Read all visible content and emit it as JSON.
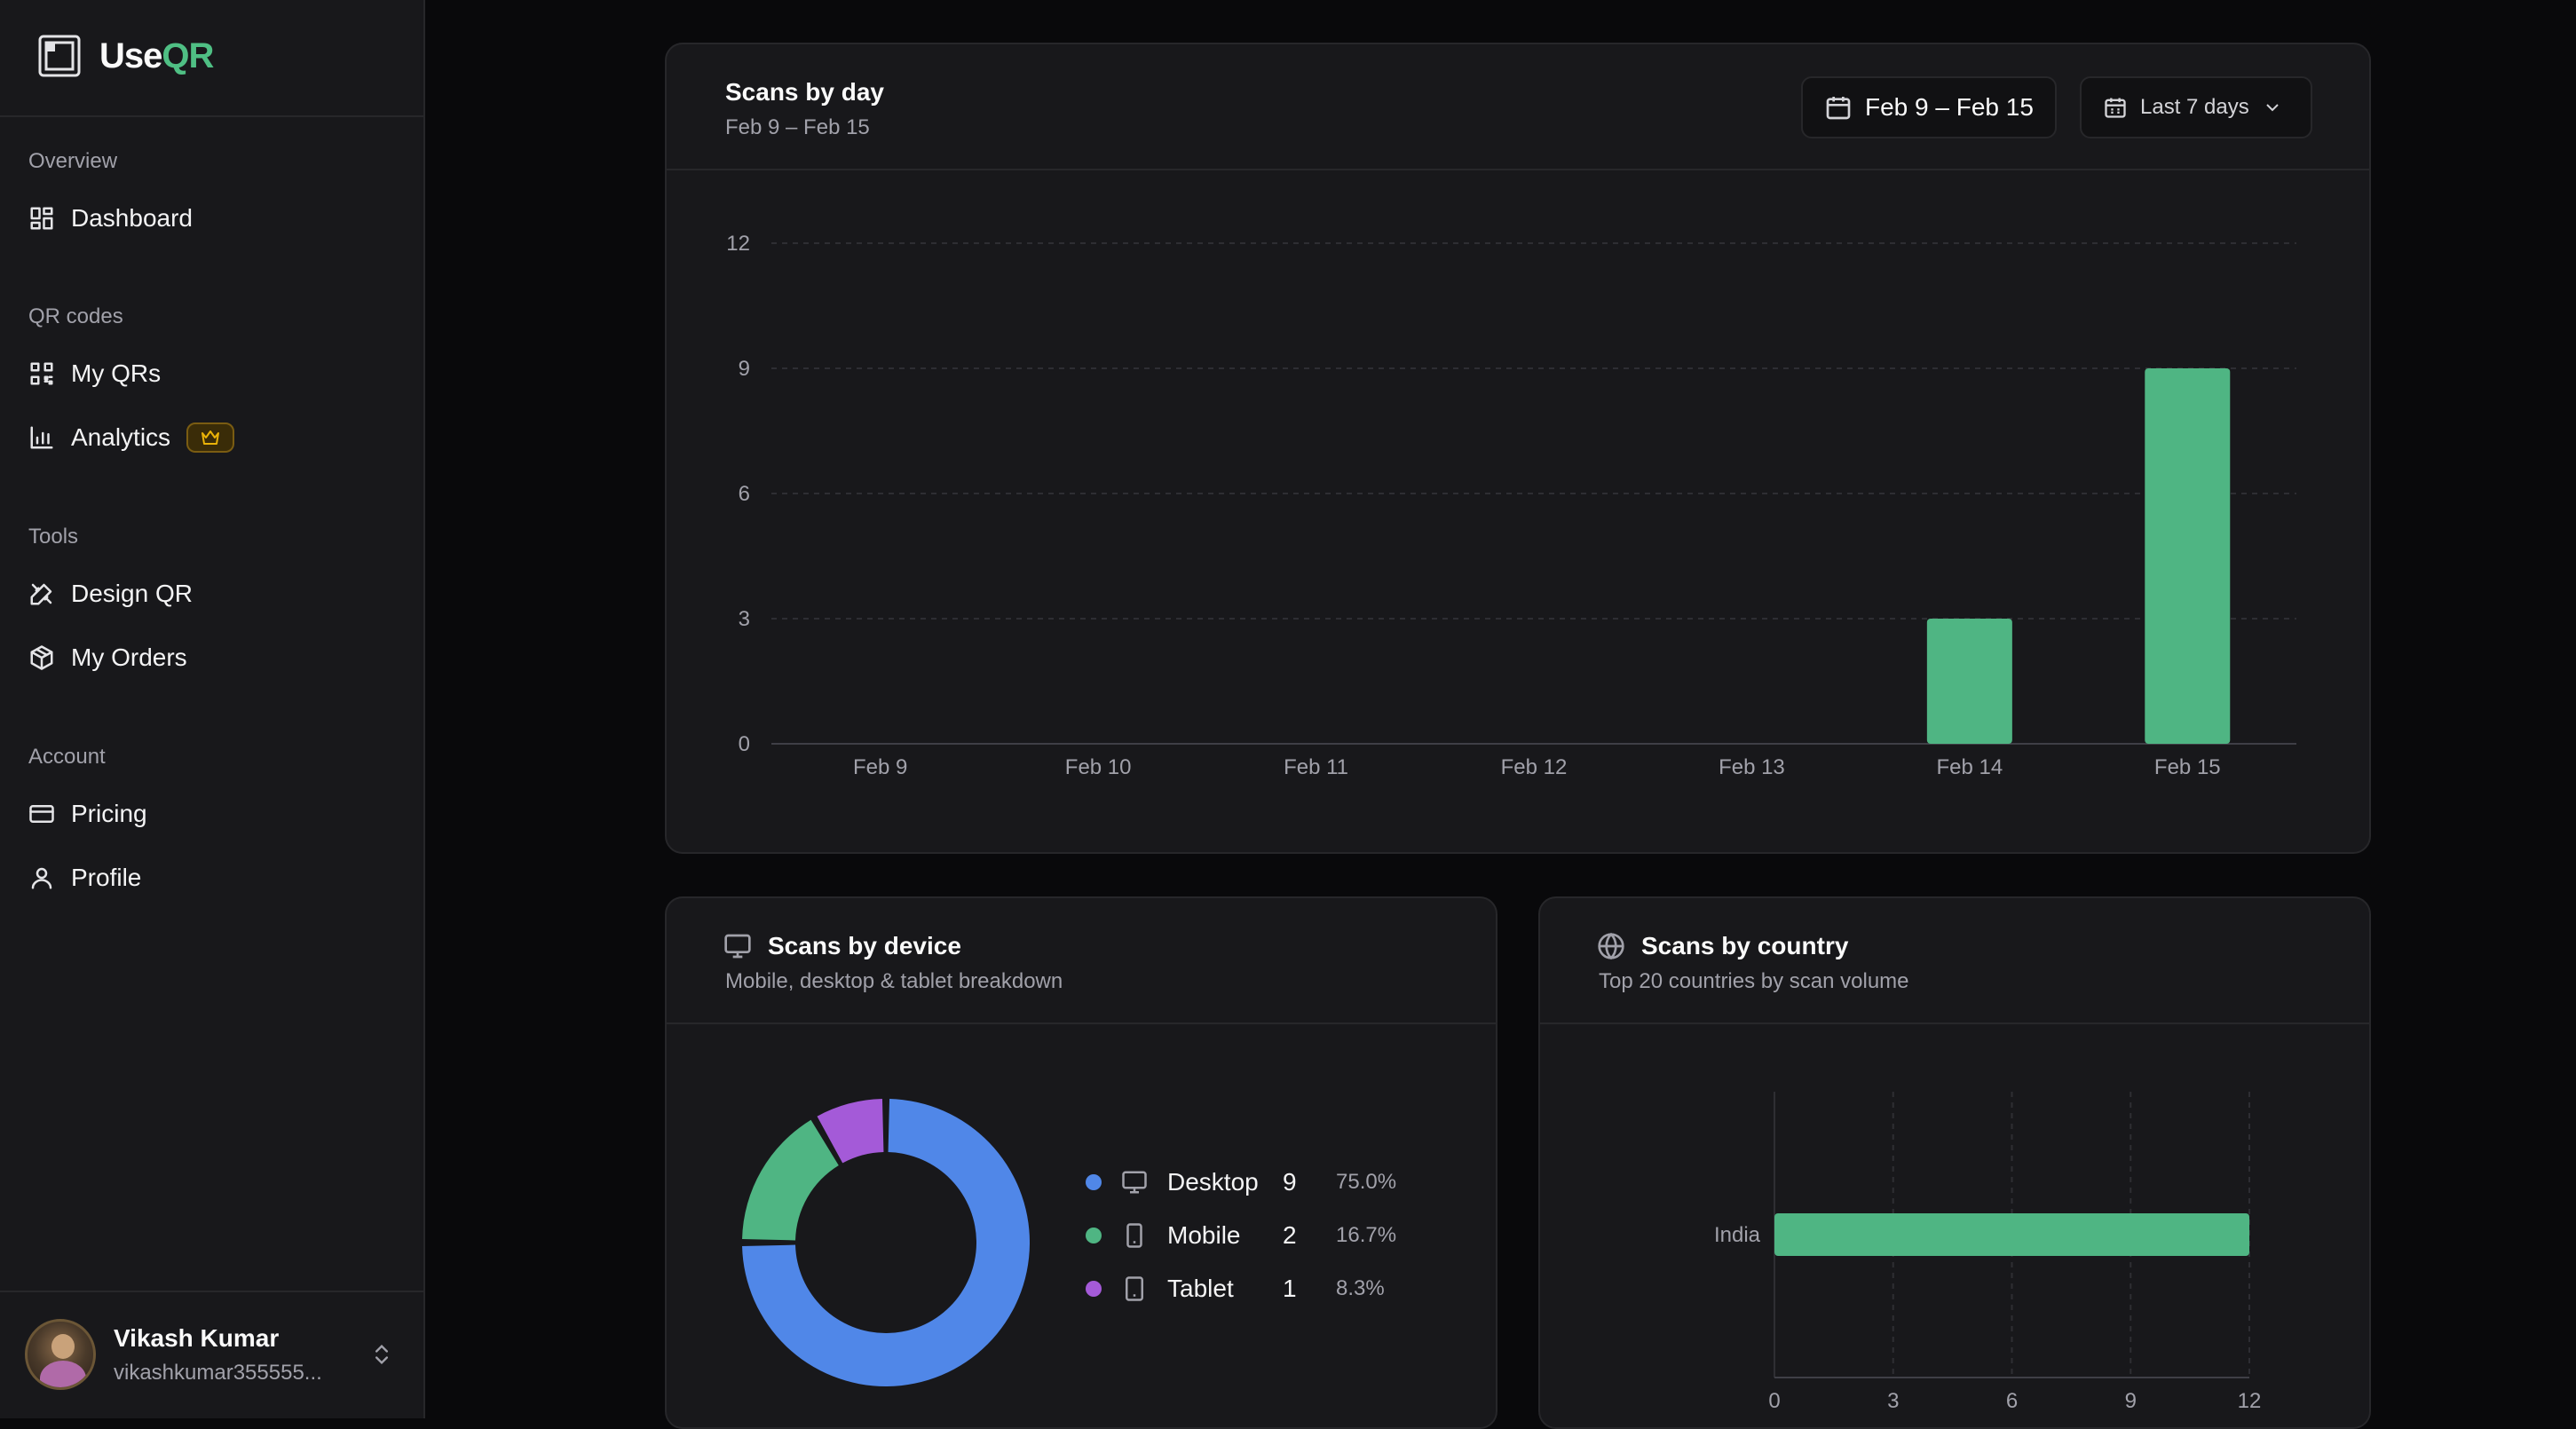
{
  "app": {
    "name_prefix": "Use",
    "name_suffix": "QR"
  },
  "sidebar": {
    "groups": [
      {
        "label": "Overview",
        "items": [
          {
            "label": "Dashboard",
            "icon": "dashboard-icon"
          }
        ]
      },
      {
        "label": "QR codes",
        "items": [
          {
            "label": "My QRs",
            "icon": "qr-code-icon"
          },
          {
            "label": "Analytics",
            "icon": "bar-chart-icon",
            "badge": "crown-icon"
          }
        ]
      },
      {
        "label": "Tools",
        "items": [
          {
            "label": "Design QR",
            "icon": "design-tools-icon"
          },
          {
            "label": "My Orders",
            "icon": "package-icon"
          }
        ]
      },
      {
        "label": "Account",
        "items": [
          {
            "label": "Pricing",
            "icon": "credit-card-icon"
          },
          {
            "label": "Profile",
            "icon": "user-icon"
          }
        ]
      }
    ],
    "user": {
      "name": "Vikash Kumar",
      "email": "vikashkumar355555..."
    }
  },
  "scans_by_day": {
    "title": "Scans by day",
    "subtitle": "Feb 9 – Feb 15",
    "date_range_button": "Feb 9 – Feb 15",
    "period_select": "Last 7 days"
  },
  "scans_by_device": {
    "title": "Scans by device",
    "subtitle": "Mobile, desktop & tablet breakdown",
    "items": [
      {
        "label": "Desktop",
        "count": "9",
        "percent": "75.0%",
        "color": "#5087e8",
        "icon": "monitor-icon"
      },
      {
        "label": "Mobile",
        "count": "2",
        "percent": "16.7%",
        "color": "#4fb583",
        "icon": "smartphone-icon"
      },
      {
        "label": "Tablet",
        "count": "1",
        "percent": "8.3%",
        "color": "#a45ad8",
        "icon": "tablet-icon"
      }
    ]
  },
  "scans_by_country": {
    "title": "Scans by country",
    "subtitle": "Top 20 countries by scan volume"
  },
  "colors": {
    "accent": "#4fb583",
    "desktop": "#5087e8",
    "mobile": "#4fb583",
    "tablet": "#a45ad8"
  },
  "chart_data": [
    {
      "type": "bar",
      "categories": [
        "Feb 9",
        "Feb 10",
        "Feb 11",
        "Feb 12",
        "Feb 13",
        "Feb 14",
        "Feb 15"
      ],
      "values": [
        0,
        0,
        0,
        0,
        0,
        3,
        9
      ],
      "ylim": [
        0,
        12
      ],
      "yticks": [
        0,
        3,
        6,
        9,
        12
      ],
      "grid": true
    },
    {
      "type": "pie",
      "categories": [
        "Desktop",
        "Mobile",
        "Tablet"
      ],
      "values": [
        9,
        2,
        1
      ],
      "donut": true
    },
    {
      "type": "bar",
      "orientation": "horizontal",
      "categories": [
        "India"
      ],
      "values": [
        12
      ],
      "xlim": [
        0,
        12
      ],
      "xticks": [
        0,
        3,
        6,
        9,
        12
      ],
      "grid": true
    }
  ]
}
